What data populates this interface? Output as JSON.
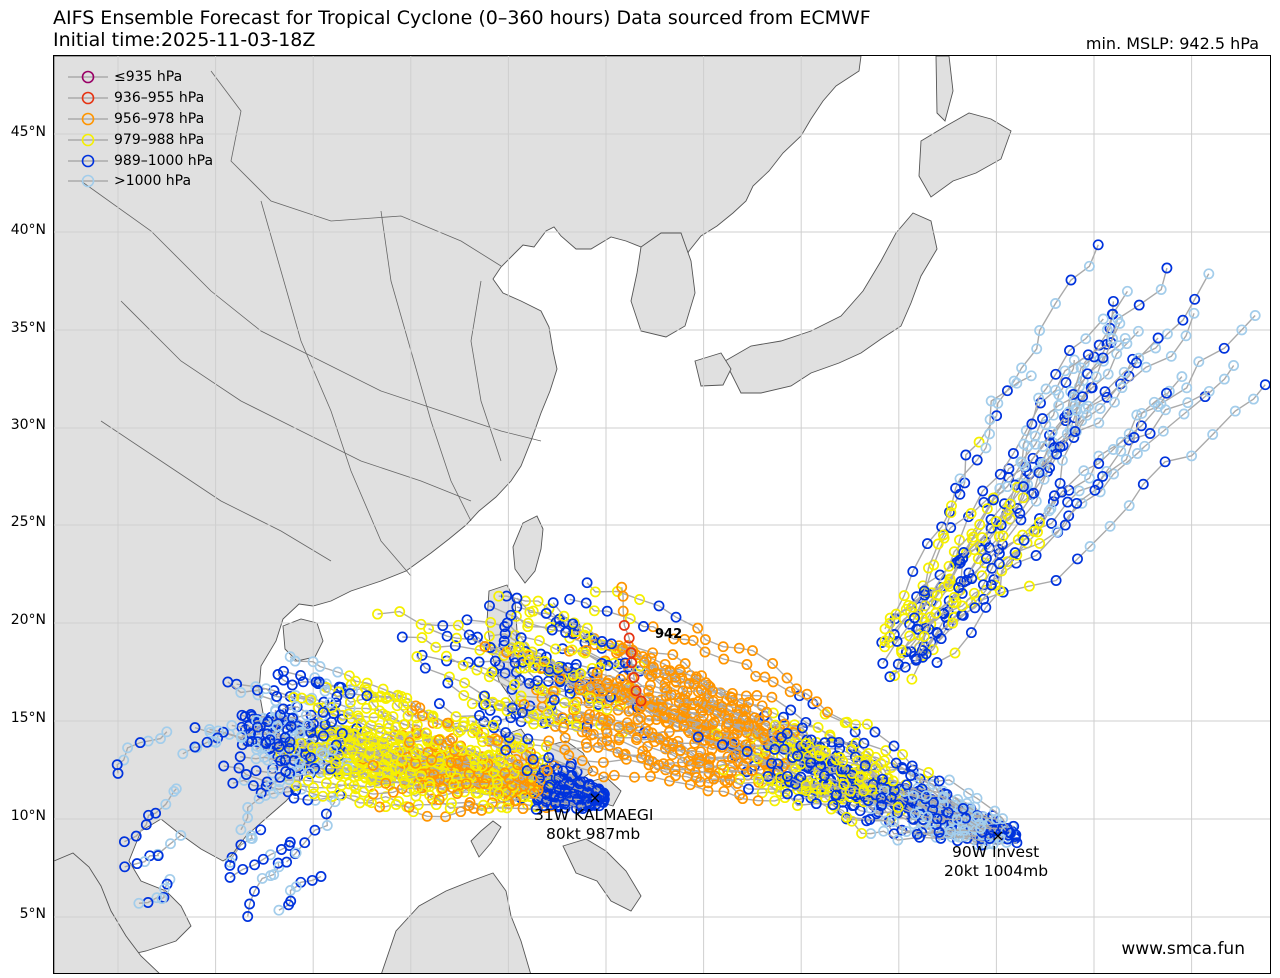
{
  "header": {
    "title_line1": "AIFS Ensemble Forecast for Tropical Cyclone (0–360 hours) Data sourced from ECMWF",
    "title_line2": "Initial time:2025-11-03-18Z",
    "min_mslp": "min. MSLP: 942.5 hPa"
  },
  "axes": {
    "lat_labels": [
      "45°N",
      "40°N",
      "35°N",
      "30°N",
      "25°N",
      "20°N",
      "15°N",
      "10°N",
      "5°N"
    ]
  },
  "legend": [
    {
      "label": "≤935 hPa",
      "color": "#990066"
    },
    {
      "label": "936–955 hPa",
      "color": "#e63312"
    },
    {
      "label": "956–978 hPa",
      "color": "#ff9500"
    },
    {
      "label": "979–988 hPa",
      "color": "#f5f000"
    },
    {
      "label": "989–1000 hPa",
      "color": "#0033dd"
    },
    {
      "label": ">1000 hPa",
      "color": "#a3cdeb"
    }
  ],
  "annotations": {
    "min_marker": "942",
    "storm1_name": "31W KALMAEGI",
    "storm1_info": "80kt 987mb",
    "storm2_name": "90W Invest",
    "storm2_info": "20kt 1004mb"
  },
  "footer": {
    "site": "www.smca.fun"
  },
  "colors": {
    "land": "#e0e0e0",
    "coast": "#555555",
    "track": "#aaaaaa",
    "grid": "#d0d0d0"
  }
}
